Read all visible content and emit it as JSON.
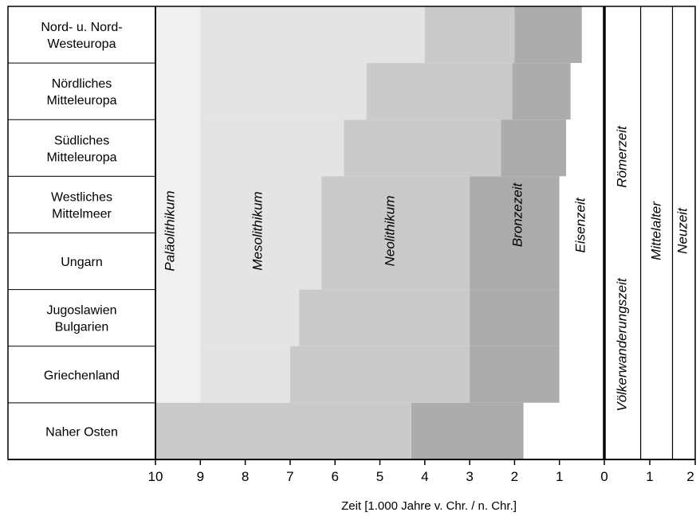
{
  "chart_data": {
    "type": "timeline",
    "xlabel": "Zeit [1.000 Jahre v. Chr. / n. Chr.]",
    "x_ticks_bc": [
      "10",
      "9",
      "8",
      "7",
      "6",
      "5",
      "4",
      "3",
      "2",
      "1",
      "0"
    ],
    "x_ticks_ad": [
      "1",
      "2"
    ],
    "xlim_bc": [
      10,
      0
    ],
    "xlim_ad": [
      0,
      2
    ],
    "regions": [
      "Nord- u. Nord-\nWesteuropa",
      "Nördliches\nMitteleuropa",
      "Südliches\nMitteleuropa",
      "Westliches\nMittelmeer",
      "Ungarn",
      "Jugoslawien\nBulgarien",
      "Griechenland",
      "Naher Osten"
    ],
    "periods": [
      {
        "name": "Paläolithikum",
        "color": "#f0f0f0"
      },
      {
        "name": "Mesolithikum",
        "color": "#e4e4e4"
      },
      {
        "name": "Neolithikum",
        "color": "#cacaca"
      },
      {
        "name": "Bronzezeit",
        "color": "#acacac"
      },
      {
        "name": "Eisenzeit",
        "color": "#ffffff"
      }
    ],
    "period_starts_bc": [
      {
        "region": "Nord- u. Nord-Westeuropa",
        "Mesolithikum": 9.0,
        "Neolithikum": 4.0,
        "Bronzezeit": 2.0,
        "Eisenzeit": 0.5
      },
      {
        "region": "Nördliches Mitteleuropa",
        "Mesolithikum": 9.0,
        "Neolithikum": 5.3,
        "Bronzezeit": 2.05,
        "Eisenzeit": 0.75
      },
      {
        "region": "Südliches Mitteleuropa",
        "Mesolithikum": 9.0,
        "Neolithikum": 5.8,
        "Bronzezeit": 2.3,
        "Eisenzeit": 0.85
      },
      {
        "region": "Westliches Mittelmeer",
        "Mesolithikum": 9.0,
        "Neolithikum": 6.3,
        "Bronzezeit": 3.0,
        "Eisenzeit": 1.0
      },
      {
        "region": "Ungarn",
        "Mesolithikum": 9.0,
        "Neolithikum": 6.3,
        "Bronzezeit": 3.0,
        "Eisenzeit": 1.0
      },
      {
        "region": "Jugoslawien Bulgarien",
        "Mesolithikum": 9.0,
        "Neolithikum": 6.8,
        "Bronzezeit": 3.0,
        "Eisenzeit": 1.0
      },
      {
        "region": "Griechenland",
        "Mesolithikum": 9.0,
        "Neolithikum": 7.0,
        "Bronzezeit": 3.0,
        "Eisenzeit": 1.0
      },
      {
        "region": "Naher Osten",
        "Mesolithikum": null,
        "Neolithikum": 10.0,
        "Bronzezeit": 4.3,
        "Eisenzeit": 1.8
      }
    ],
    "ad_periods": [
      {
        "name": "Römerzeit",
        "start": 0,
        "end": 0.8
      },
      {
        "name": "Völkerwanderungszeit",
        "start": 0,
        "end": 0.8
      },
      {
        "name": "Mittelalter",
        "start": 0.8,
        "end": 1.5
      },
      {
        "name": "Neuzeit",
        "start": 1.5,
        "end": 2
      }
    ],
    "era_labels": {
      "palaeo": "Paläolithikum",
      "meso": "Mesolithikum",
      "neo": "Neolithikum",
      "bronze": "Bronzezeit",
      "eisen": "Eisenzeit",
      "roemer": "Römerzeit",
      "voelker": "Völkerwanderungszeit",
      "mittel": "Mittelalter",
      "neu": "Neuzeit"
    }
  }
}
